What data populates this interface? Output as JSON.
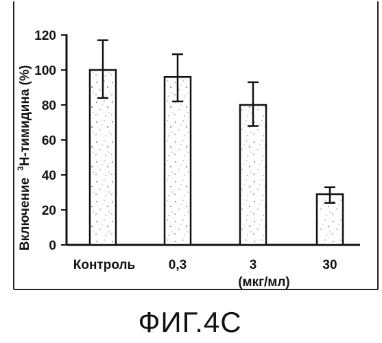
{
  "chart_data": {
    "type": "bar",
    "categories": [
      "Контроль",
      "0,3",
      "3",
      "30"
    ],
    "values": [
      100,
      96,
      80,
      29
    ],
    "error_low": [
      84,
      82,
      68,
      24
    ],
    "error_high": [
      117,
      109,
      93,
      33
    ],
    "ylabel_prefix": "Включение",
    "ylabel_super": "3",
    "ylabel_suffix": "H-тимидина (%)",
    "xunit": "(мкг/мл)",
    "ylim": [
      0,
      120
    ],
    "yticks": [
      0,
      20,
      40,
      60,
      80,
      100,
      120
    ],
    "ytick_labels": [
      "0",
      "20",
      "40",
      "60",
      "80",
      "100",
      "120"
    ],
    "grid": false,
    "bar_fill": "stippled"
  },
  "caption": "ФИГ.4С"
}
